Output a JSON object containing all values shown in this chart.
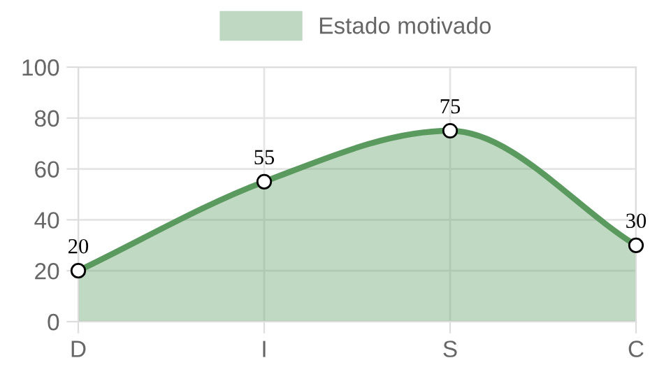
{
  "chart_data": {
    "type": "area",
    "categories": [
      "D",
      "I",
      "S",
      "C"
    ],
    "series": [
      {
        "name": "Estado motivado",
        "color": "#5a9a5f",
        "values": [
          20,
          55,
          75,
          30
        ]
      }
    ],
    "ylim": [
      0,
      100
    ],
    "yticks": [
      0,
      20,
      40,
      60,
      80,
      100
    ],
    "grid": true,
    "legend": "top",
    "marker": "circle",
    "line_style": "solid",
    "data_labels": true
  }
}
